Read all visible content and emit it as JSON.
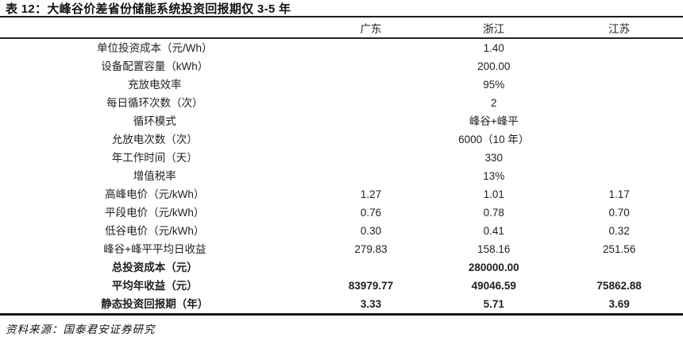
{
  "title": "表 12：大峰谷价差省份储能系统投资回报期仅 3-5 年",
  "table": {
    "columns": [
      "广东",
      "浙江",
      "江苏"
    ],
    "rows": [
      {
        "label": "单位投资成本（元/Wh）",
        "gd": "",
        "zj": "1.40",
        "js": ""
      },
      {
        "label": "设备配置容量（kWh）",
        "gd": "",
        "zj": "200.00",
        "js": ""
      },
      {
        "label": "充放电效率",
        "gd": "",
        "zj": "95%",
        "js": ""
      },
      {
        "label": "每日循环次数（次）",
        "gd": "",
        "zj": "2",
        "js": ""
      },
      {
        "label": "循环模式",
        "gd": "",
        "zj": "峰谷+峰平",
        "js": ""
      },
      {
        "label": "允放电次数（次）",
        "gd": "",
        "zj": "6000（10 年）",
        "js": ""
      },
      {
        "label": "年工作时间（天）",
        "gd": "",
        "zj": "330",
        "js": ""
      },
      {
        "label": "增值税率",
        "gd": "",
        "zj": "13%",
        "js": ""
      },
      {
        "label": "高峰电价（元/kWh）",
        "gd": "1.27",
        "zj": "1.01",
        "js": "1.17"
      },
      {
        "label": "平段电价（元/kWh）",
        "gd": "0.76",
        "zj": "0.78",
        "js": "0.70"
      },
      {
        "label": "低谷电价（元/kWh）",
        "gd": "0.30",
        "zj": "0.41",
        "js": "0.32"
      },
      {
        "label": "峰谷+峰平平均日收益",
        "gd": "279.83",
        "zj": "158.16",
        "js": "251.56"
      },
      {
        "label": "总投资成本（元）",
        "gd": "",
        "zj": "280000.00",
        "js": ""
      },
      {
        "label": "平均年收益（元）",
        "gd": "83979.77",
        "zj": "49046.59",
        "js": "75862.88"
      },
      {
        "label": "静态投资回报期（年）",
        "gd": "3.33",
        "zj": "5.71",
        "js": "3.69"
      }
    ]
  },
  "source": "资料来源：国泰君安证券研究"
}
